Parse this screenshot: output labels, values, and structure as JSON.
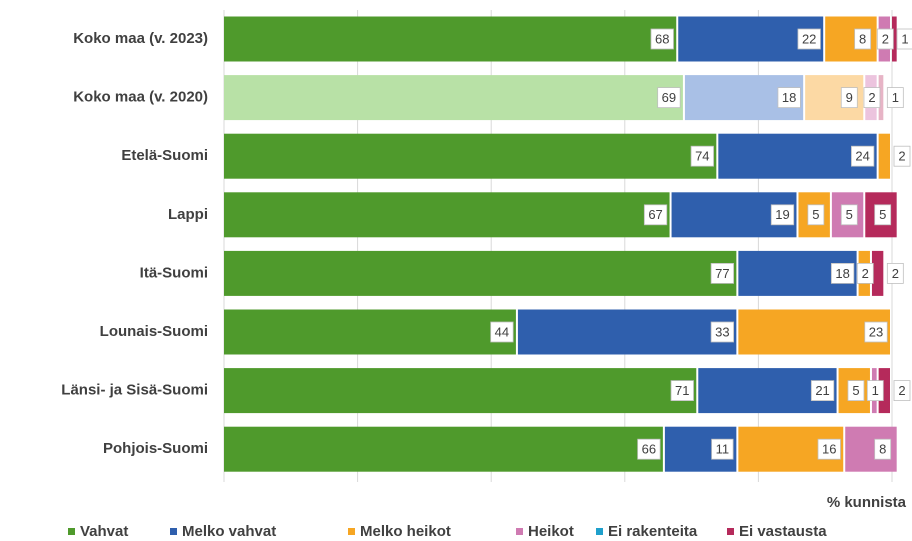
{
  "chart_data": {
    "type": "stacked_bar_horizontal",
    "categories": [
      "Koko maa (v. 2023)",
      "Koko maa (v. 2020)",
      "Etelä-Suomi",
      "Lappi",
      "Itä-Suomi",
      "Lounais-Suomi",
      "Länsi- ja Sisä-Suomi",
      "Pohjois-Suomi"
    ],
    "series": [
      {
        "name": "Vahvat",
        "color": "#4f9a2c",
        "faded_color": "#b8e1a6",
        "values": [
          68,
          69,
          74,
          67,
          77,
          44,
          71,
          66
        ]
      },
      {
        "name": "Melko vahvat",
        "color": "#2f5fad",
        "faded_color": "#a9c0e6",
        "values": [
          22,
          18,
          24,
          19,
          18,
          33,
          21,
          11
        ]
      },
      {
        "name": "Melko heikot",
        "color": "#f6a623",
        "faded_color": "#fcd9a4",
        "values": [
          8,
          9,
          2,
          5,
          2,
          23,
          5,
          16
        ]
      },
      {
        "name": "Heikot",
        "color": "#cf7bb2",
        "faded_color": "#ecc4de",
        "values": [
          2,
          2,
          null,
          5,
          null,
          null,
          1,
          8
        ]
      },
      {
        "name": "Ei rakenteita",
        "color": "#1fa0cc",
        "faded_color": "#a7dbee",
        "values": [
          null,
          null,
          null,
          null,
          null,
          null,
          null,
          null
        ]
      },
      {
        "name": "Ei vastausta",
        "color": "#b52a5b",
        "faded_color": "#e7b4c6",
        "values": [
          1,
          1,
          null,
          5,
          2,
          null,
          2,
          null
        ]
      }
    ],
    "faded_categories": [
      1
    ],
    "xlim": [
      0,
      100
    ],
    "xticks": [
      0,
      20,
      40,
      60,
      80,
      100
    ],
    "grid": true,
    "x_label": "% kunnista",
    "legend": "bottom"
  }
}
